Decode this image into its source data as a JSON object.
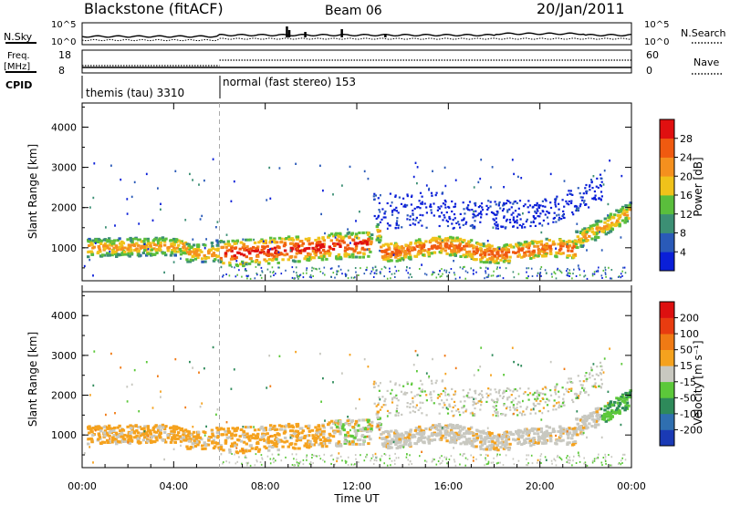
{
  "header": {
    "station": "Blackstone (fitACF)",
    "beam": "Beam 06",
    "date": "20/Jan/2011"
  },
  "top_panels": {
    "nsky_label": "N.Sky",
    "nsky_ticks": [
      "10^5",
      "10^0"
    ],
    "nsky_right_ticks": [
      "10^5",
      "10^0"
    ],
    "nsearch_label": "N.Search",
    "freq_label_line1": "Freq.",
    "freq_label_line2": "[MHz]",
    "freq_ticks": [
      "18",
      "8"
    ],
    "nave_label": "Nave",
    "nave_ticks": [
      "60",
      "0"
    ],
    "cpid_label": "CPID",
    "cpid_segments": [
      {
        "name": "themis (tau) 3310",
        "start_hour": 0
      },
      {
        "name": "normal (fast stereo) 153",
        "start_hour": 6
      }
    ]
  },
  "chart_data": [
    {
      "type": "heatmap",
      "title": "",
      "xlabel": "Time UT",
      "ylabel": "Slant Range [km]",
      "xlim": [
        0,
        24
      ],
      "ylim": [
        180,
        4600
      ],
      "x_tick_labels": [
        "00:00",
        "04:00",
        "08:00",
        "12:00",
        "16:00",
        "20:00",
        "00:00"
      ],
      "y_tick_labels": [
        "1000",
        "2000",
        "3000",
        "4000"
      ],
      "colorbar_label": "Power [dB]",
      "colorbar_ticks": [
        "4",
        "8",
        "12",
        "16",
        "20",
        "24",
        "28"
      ],
      "colorbar_colors": [
        "#0a1fd8",
        "#2a5ab8",
        "#3c8f74",
        "#5abe3c",
        "#f0c21a",
        "#f5901e",
        "#f05a10",
        "#e01010"
      ]
    },
    {
      "type": "heatmap",
      "title": "",
      "xlabel": "Time UT",
      "ylabel": "Slant Range [km]",
      "xlim": [
        0,
        24
      ],
      "ylim": [
        180,
        4600
      ],
      "x_tick_labels": [
        "00:00",
        "04:00",
        "08:00",
        "12:00",
        "16:00",
        "20:00",
        "00:00"
      ],
      "y_tick_labels": [
        "1000",
        "2000",
        "3000",
        "4000"
      ],
      "colorbar_label": "Velocity [m s⁻¹]",
      "colorbar_ticks": [
        "200",
        "100",
        "50",
        "15",
        "-15",
        "-50",
        "-100",
        "-200"
      ],
      "colorbar_colors": [
        "#1a3ab5",
        "#2f6fb0",
        "#2e8a5a",
        "#5cc83a",
        "#c8c8c0",
        "#f5a21e",
        "#f07a14",
        "#e83c10",
        "#dd1010"
      ]
    }
  ],
  "time_axis_label": "Time UT"
}
